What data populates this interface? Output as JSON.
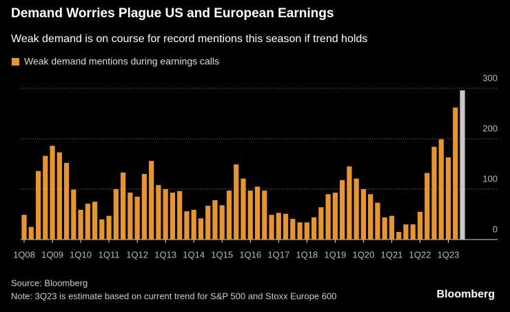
{
  "chart_data": {
    "type": "bar",
    "title": "Demand Worries Plague US and European Earnings",
    "subtitle": "Weak demand is on course for record mentions this season if trend holds",
    "source": "Source: Bloomberg",
    "note": "Note: 3Q23 is estimate based on current trend for S&P 500 and Stoxx Europe 600",
    "brand": "Bloomberg",
    "categories": [
      "1Q08",
      null,
      null,
      null,
      "1Q09",
      null,
      null,
      null,
      "1Q10",
      null,
      null,
      null,
      "1Q11",
      null,
      null,
      null,
      "1Q12",
      null,
      null,
      null,
      "1Q13",
      null,
      null,
      null,
      "1Q14",
      null,
      null,
      null,
      "1Q15",
      null,
      null,
      null,
      "1Q16",
      null,
      null,
      null,
      "1Q17",
      null,
      null,
      null,
      "1Q18",
      null,
      null,
      null,
      "1Q19",
      null,
      null,
      null,
      "1Q20",
      null,
      null,
      null,
      "1Q21",
      null,
      null,
      null,
      "1Q22",
      null,
      null,
      null,
      "1Q23",
      null,
      null
    ],
    "series": [
      {
        "name": "Weak demand mentions during earnings calls",
        "color": "#e8952a",
        "values": [
          49,
          25,
          136,
          166,
          186,
          173,
          152,
          99,
          59,
          71,
          75,
          40,
          47,
          100,
          133,
          93,
          85,
          130,
          156,
          108,
          100,
          93,
          96,
          56,
          59,
          42,
          67,
          78,
          68,
          97,
          149,
          121,
          97,
          105,
          97,
          49,
          53,
          51,
          41,
          34,
          34,
          44,
          64,
          90,
          93,
          118,
          145,
          121,
          100,
          90,
          73,
          44,
          47,
          15,
          30,
          30,
          55,
          132,
          184,
          199,
          163,
          262,
          296
        ]
      }
    ],
    "estimate_color": "#c8c8c8",
    "estimate_category": "3Q23",
    "ylim": [
      0,
      300
    ],
    "yticks": [
      0,
      100,
      200,
      300
    ],
    "grid": true
  }
}
